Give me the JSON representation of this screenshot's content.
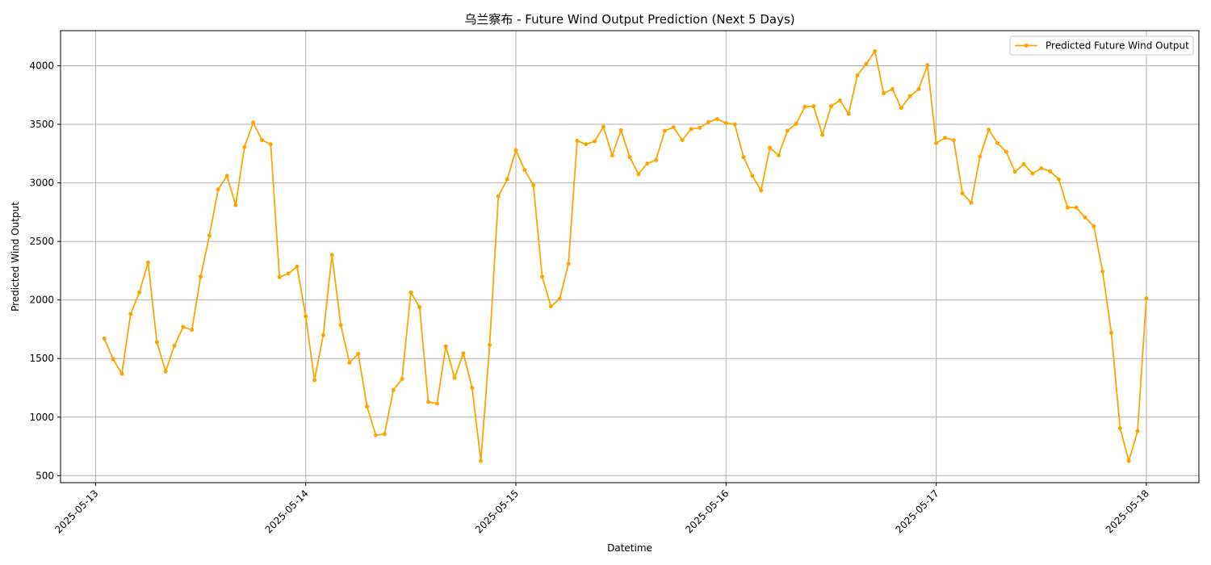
{
  "chart_data": {
    "type": "line",
    "title": "乌兰察布 - Future Wind Output Prediction (Next 5 Days)",
    "xlabel": "Datetime",
    "ylabel": "Predicted Wind Output",
    "x_start": "2025-05-13 01:00",
    "x_step_hours": 1,
    "x_ticks": [
      "2025-05-13",
      "2025-05-14",
      "2025-05-15",
      "2025-05-16",
      "2025-05-17",
      "2025-05-18"
    ],
    "y_ticks": [
      500,
      1000,
      1500,
      2000,
      2500,
      3000,
      3500,
      4000
    ],
    "xlim": [
      "2025-05-12 20:00",
      "2025-05-18 06:00"
    ],
    "ylim": [
      440,
      4300
    ],
    "grid": true,
    "legend_position": "top-right",
    "color": "#ffa500",
    "series": [
      {
        "name": "Predicted Future Wind Output",
        "values": [
          1670,
          1495,
          1370,
          1880,
          2065,
          2320,
          1640,
          1390,
          1610,
          1770,
          1745,
          2200,
          2550,
          2945,
          3060,
          2810,
          3305,
          3515,
          3365,
          3330,
          2195,
          2225,
          2285,
          1860,
          1315,
          1700,
          2385,
          1785,
          1465,
          1540,
          1090,
          845,
          855,
          1230,
          1325,
          2065,
          1940,
          1130,
          1115,
          1605,
          1335,
          1545,
          1250,
          625,
          1615,
          2885,
          3030,
          3280,
          3110,
          2980,
          2200,
          1945,
          2010,
          2310,
          3360,
          3330,
          3355,
          3480,
          3235,
          3450,
          3220,
          3075,
          3165,
          3195,
          3445,
          3475,
          3365,
          3460,
          3470,
          3520,
          3545,
          3510,
          3500,
          3220,
          3060,
          2935,
          3300,
          3235,
          3445,
          3505,
          3650,
          3655,
          3410,
          3655,
          3705,
          3590,
          3920,
          4015,
          4125,
          3765,
          3800,
          3640,
          3740,
          3800,
          4005,
          3340,
          3385,
          3365,
          2910,
          2830,
          3225,
          3455,
          3340,
          3265,
          3095,
          3160,
          3080,
          3125,
          3100,
          3030,
          2790,
          2790,
          2705,
          2630,
          2245,
          1720,
          905,
          625,
          880,
          2015
        ]
      }
    ]
  }
}
